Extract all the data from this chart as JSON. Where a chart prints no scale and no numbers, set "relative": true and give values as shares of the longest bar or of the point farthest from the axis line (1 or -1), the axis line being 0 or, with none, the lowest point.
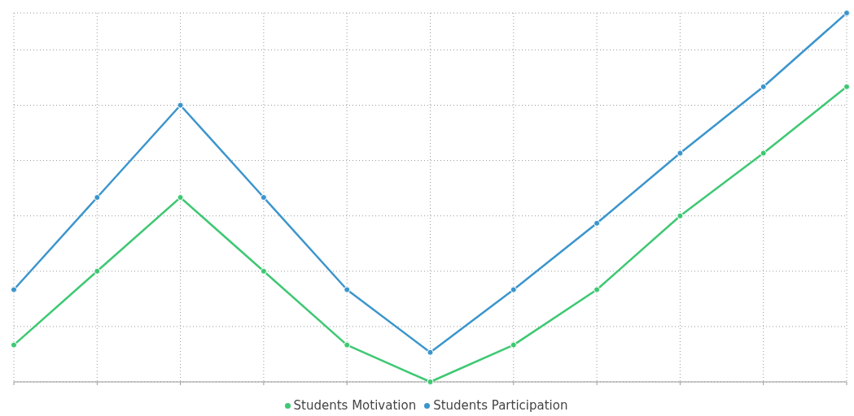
{
  "chart_data": {
    "type": "line",
    "relative": true,
    "categories": [
      null,
      null,
      null,
      null,
      null,
      null,
      null,
      null,
      null,
      null,
      null
    ],
    "series": [
      {
        "name": "Students Motivation",
        "color": "#3ec873",
        "values": [
          0.1,
          0.3,
          0.5,
          0.3,
          0.1,
          0,
          0.1,
          0.25,
          0.45,
          0.62,
          0.8
        ]
      },
      {
        "name": "Students Participation",
        "color": "#3b95cc",
        "values": [
          0.25,
          0.5,
          0.75,
          0.5,
          0.25,
          0.08,
          0.25,
          0.43,
          0.62,
          0.8,
          1.0
        ]
      }
    ],
    "grid": true,
    "legend": "bottom",
    "marker": "circle",
    "line_style": "solid"
  }
}
